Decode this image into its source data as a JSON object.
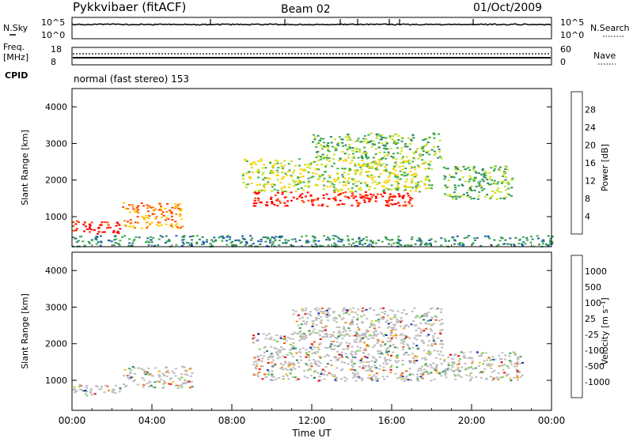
{
  "header": {
    "radar": "Pykkvibaer (fitACF)",
    "beam": "Beam 02",
    "date": "01/Oct/2009"
  },
  "summary": {
    "nsky_label": "N.Sky",
    "nsky_ticks": [
      "10^5",
      "10^0"
    ],
    "nsearch_label": "N.Search",
    "nsearch_ticks": [
      "10^5",
      "10^0"
    ],
    "freq_label_1": "Freq.",
    "freq_label_2": "[MHz]",
    "freq_ticks": [
      "18",
      "8"
    ],
    "nave_label": "Nave",
    "nave_ticks": [
      "60",
      "0"
    ],
    "cpid_label": "CPID",
    "cpid_text": "normal (fast stereo) 153"
  },
  "chart_data": [
    {
      "type": "heatmap",
      "title": "",
      "xlabel": "",
      "ylabel": "Slant Range [km]",
      "xlim": [
        0,
        24
      ],
      "ylim": [
        180,
        4500
      ],
      "y_ticks": [
        1000,
        2000,
        3000,
        4000
      ],
      "colorbar": {
        "label": "Power [dB]",
        "ticks": [
          "28",
          "24",
          "20",
          "16",
          "12",
          "8",
          "4"
        ],
        "colors": [
          "#ff0000",
          "#ff4400",
          "#ff8c00",
          "#ffd200",
          "#c8e020",
          "#3cb04a",
          "#2f8a5e",
          "#1f5fb0",
          "#1010e0"
        ]
      },
      "features": [
        {
          "t": [
            0.0,
            2.5
          ],
          "r": [
            550,
            900
          ],
          "level": 8
        },
        {
          "t": [
            2.5,
            5.5
          ],
          "r": [
            700,
            1400
          ],
          "level": 6
        },
        {
          "t": [
            9.0,
            17.0
          ],
          "r": [
            1300,
            1700
          ],
          "level": 8
        },
        {
          "t": [
            8.5,
            18.0
          ],
          "r": [
            1700,
            2600
          ],
          "level": 4
        },
        {
          "t": [
            12.0,
            18.5
          ],
          "r": [
            2600,
            3300
          ],
          "level": 3
        },
        {
          "t": [
            18.5,
            22.0
          ],
          "r": [
            1500,
            2400
          ],
          "level": 3
        },
        {
          "t": [
            0.0,
            24.0
          ],
          "r": [
            200,
            500
          ],
          "level": 2
        }
      ]
    },
    {
      "type": "heatmap",
      "title": "",
      "xlabel": "Time UT",
      "ylabel": "Slant Range [km]",
      "xlim": [
        0,
        24
      ],
      "ylim": [
        180,
        4500
      ],
      "x_ticks": [
        "00:00",
        "04:00",
        "08:00",
        "12:00",
        "16:00",
        "20:00",
        "00:00"
      ],
      "y_ticks": [
        1000,
        2000,
        3000,
        4000
      ],
      "colorbar": {
        "label": "Velocity [m s⁻¹]",
        "ticks": [
          "1000",
          "500",
          "100",
          "25",
          "-25",
          "-100",
          "-500",
          "-1000"
        ],
        "colors": [
          "#1a2fb8",
          "#2a7f6a",
          "#3ca84a",
          "#7ed640",
          "#bdbdbd",
          "#f7c22a",
          "#f28c1e",
          "#ee5a10",
          "#ea0a0a"
        ]
      },
      "features": [
        {
          "t": [
            9.0,
            18.5
          ],
          "r": [
            1000,
            2300
          ],
          "level": 4
        },
        {
          "t": [
            11.0,
            18.5
          ],
          "r": [
            2200,
            3000
          ],
          "level": 6
        },
        {
          "t": [
            2.5,
            6.0
          ],
          "r": [
            800,
            1400
          ],
          "level": 4
        },
        {
          "t": [
            0.0,
            2.5
          ],
          "r": [
            600,
            900
          ],
          "level": 6
        },
        {
          "t": [
            18.5,
            22.5
          ],
          "r": [
            1000,
            1800
          ],
          "level": 3
        }
      ]
    }
  ]
}
